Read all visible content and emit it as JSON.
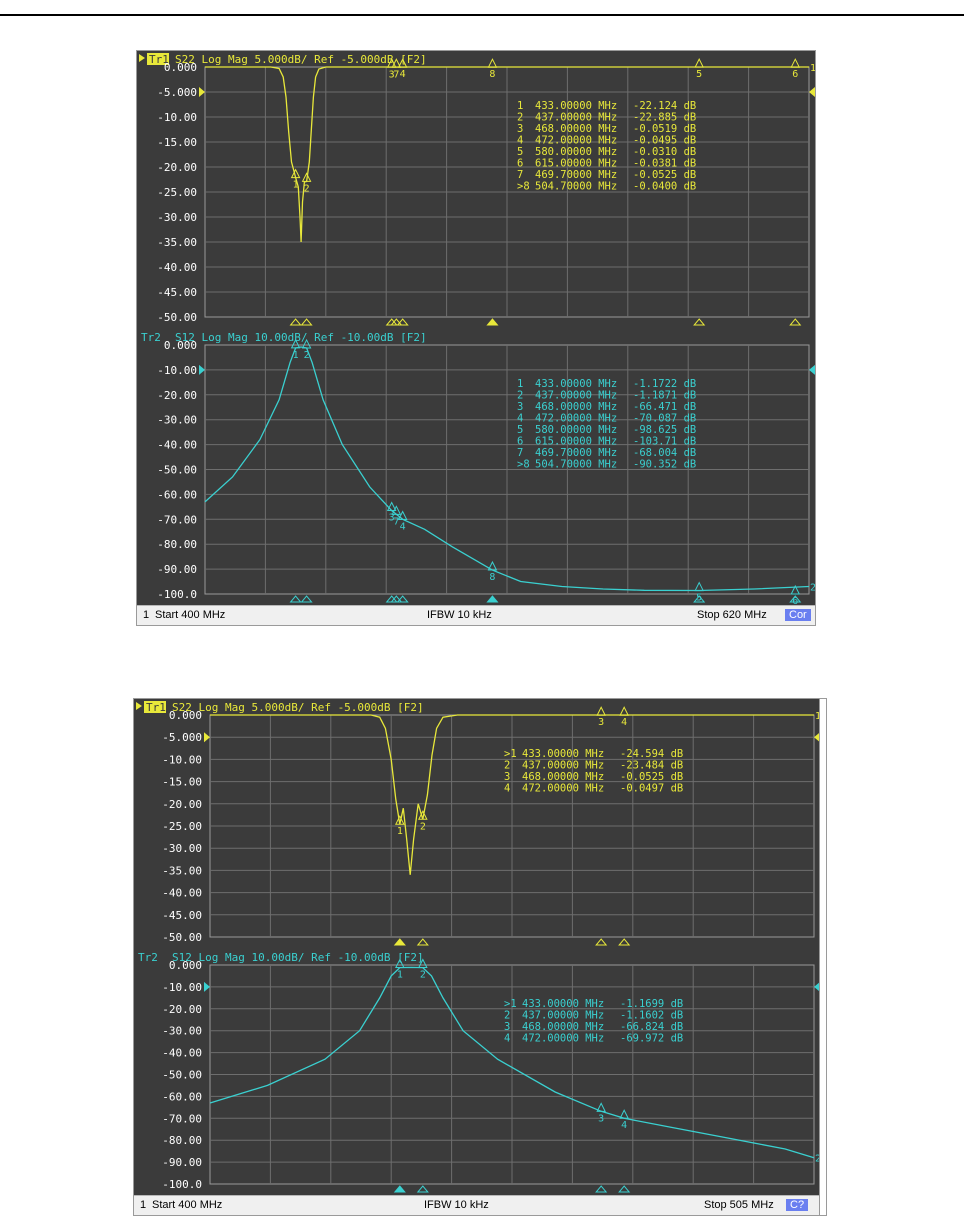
{
  "screenshots": [
    {
      "name": "screenshot-1",
      "status": {
        "channel": "1",
        "start": "Start 400 MHz",
        "ifbw": "IFBW 10 kHz",
        "stop": "Stop 620 MHz",
        "cor": "Cor"
      },
      "chart_data": [
        {
          "type": "line",
          "trace": "Tr1",
          "header": "S22 Log Mag 5.000dB/ Ref -5.000dB [F2]",
          "color": "#e8e83a",
          "x_range_mhz": [
            400,
            620
          ],
          "ylim": [
            -50,
            0
          ],
          "y_ticks": [
            "0.000",
            "-5.000",
            "-10.00",
            "-15.00",
            "-20.00",
            "-25.00",
            "-30.00",
            "-35.00",
            "-40.00",
            "-45.00",
            "-50.00"
          ],
          "ref_value": -5,
          "grid": true,
          "channel_label": "1",
          "markers": [
            {
              "id": "1",
              "freq": "433.00000 MHz",
              "value": "-22.124 dB",
              "x": 433,
              "y": -22.124
            },
            {
              "id": "2",
              "freq": "437.00000 MHz",
              "value": "-22.885 dB",
              "x": 437,
              "y": -22.885
            },
            {
              "id": "3",
              "freq": "468.00000 MHz",
              "value": "-0.0519 dB",
              "x": 468,
              "y": -0.0519
            },
            {
              "id": "4",
              "freq": "472.00000 MHz",
              "value": "-0.0495 dB",
              "x": 472,
              "y": -0.0495
            },
            {
              "id": "5",
              "freq": "580.00000 MHz",
              "value": "-0.0310 dB",
              "x": 580,
              "y": -0.031
            },
            {
              "id": "6",
              "freq": "615.00000 MHz",
              "value": "-0.0381 dB",
              "x": 615,
              "y": -0.0381
            },
            {
              "id": "7",
              "freq": "469.70000 MHz",
              "value": "-0.0525 dB",
              "x": 469.7,
              "y": -0.0525
            },
            {
              "id": ">8",
              "freq": "504.70000 MHz",
              "value": "-0.0400 dB",
              "x": 504.7,
              "y": -0.04
            }
          ],
          "trace_points": [
            [
              400,
              0
            ],
            [
              424,
              0
            ],
            [
              427,
              -0.3
            ],
            [
              428.5,
              -2
            ],
            [
              429.5,
              -6
            ],
            [
              430.5,
              -13
            ],
            [
              431.5,
              -19
            ],
            [
              432.5,
              -21
            ],
            [
              433,
              -22.1
            ],
            [
              434,
              -24
            ],
            [
              434.6,
              -30
            ],
            [
              435,
              -35
            ],
            [
              435.5,
              -27
            ],
            [
              436.2,
              -23
            ],
            [
              437,
              -22.9
            ],
            [
              438,
              -19
            ],
            [
              438.8,
              -12
            ],
            [
              439.5,
              -6
            ],
            [
              440.3,
              -2
            ],
            [
              441.5,
              -0.4
            ],
            [
              444,
              0
            ],
            [
              620,
              0
            ]
          ]
        },
        {
          "type": "line",
          "trace": "Tr2",
          "header": "S12 Log Mag 10.00dB/ Ref -10.00dB [F2]",
          "color": "#3ad0d0",
          "x_range_mhz": [
            400,
            620
          ],
          "ylim": [
            -100,
            0
          ],
          "y_ticks": [
            "0.000",
            "-10.00",
            "-20.00",
            "-30.00",
            "-40.00",
            "-50.00",
            "-60.00",
            "-70.00",
            "-80.00",
            "-90.00",
            "-100.0"
          ],
          "ref_value": -10,
          "grid": true,
          "channel_label": "2",
          "markers": [
            {
              "id": "1",
              "freq": "433.00000 MHz",
              "value": "-1.1722 dB",
              "x": 433,
              "y": -1.1722
            },
            {
              "id": "2",
              "freq": "437.00000 MHz",
              "value": "-1.1871 dB",
              "x": 437,
              "y": -1.1871
            },
            {
              "id": "3",
              "freq": "468.00000 MHz",
              "value": "-66.471 dB",
              "x": 468,
              "y": -66.471
            },
            {
              "id": "4",
              "freq": "472.00000 MHz",
              "value": "-70.087 dB",
              "x": 472,
              "y": -70.087
            },
            {
              "id": "5",
              "freq": "580.00000 MHz",
              "value": "-98.625 dB",
              "x": 580,
              "y": -98.625
            },
            {
              "id": "6",
              "freq": "615.00000 MHz",
              "value": "-103.71 dB",
              "x": 615,
              "y": -103.71
            },
            {
              "id": "7",
              "freq": "469.70000 MHz",
              "value": "-68.004 dB",
              "x": 469.7,
              "y": -68.004
            },
            {
              "id": ">8",
              "freq": "504.70000 MHz",
              "value": "-90.352 dB",
              "x": 504.7,
              "y": -90.352
            }
          ],
          "trace_points": [
            [
              400,
              -63
            ],
            [
              410,
              -53
            ],
            [
              420,
              -38
            ],
            [
              427,
              -22
            ],
            [
              431,
              -7
            ],
            [
              433,
              -1.2
            ],
            [
              435,
              -0.8
            ],
            [
              437,
              -1.2
            ],
            [
              439,
              -7
            ],
            [
              443,
              -22
            ],
            [
              450,
              -40
            ],
            [
              460,
              -57
            ],
            [
              468,
              -66.5
            ],
            [
              472,
              -70
            ],
            [
              480,
              -74
            ],
            [
              490,
              -81
            ],
            [
              504.7,
              -90.4
            ],
            [
              515,
              -95
            ],
            [
              530,
              -97
            ],
            [
              545,
              -98
            ],
            [
              560,
              -98.5
            ],
            [
              580,
              -98.6
            ],
            [
              600,
              -98
            ],
            [
              620,
              -97
            ]
          ]
        }
      ]
    },
    {
      "name": "screenshot-2",
      "status": {
        "channel": "1",
        "start": "Start 400 MHz",
        "ifbw": "IFBW 10 kHz",
        "stop": "Stop 505 MHz",
        "cor": "C?"
      },
      "chart_data": [
        {
          "type": "line",
          "trace": "Tr1",
          "header": "S22 Log Mag 5.000dB/ Ref -5.000dB [F2]",
          "color": "#e8e83a",
          "x_range_mhz": [
            400,
            505
          ],
          "ylim": [
            -50,
            0
          ],
          "y_ticks": [
            "0.000",
            "-5.000",
            "-10.00",
            "-15.00",
            "-20.00",
            "-25.00",
            "-30.00",
            "-35.00",
            "-40.00",
            "-45.00",
            "-50.00"
          ],
          "ref_value": -5,
          "grid": true,
          "channel_label": "1",
          "markers": [
            {
              "id": ">1",
              "freq": "433.00000 MHz",
              "value": "-24.594 dB",
              "x": 433,
              "y": -24.594
            },
            {
              "id": "2",
              "freq": "437.00000 MHz",
              "value": "-23.484 dB",
              "x": 437,
              "y": -23.484
            },
            {
              "id": "3",
              "freq": "468.00000 MHz",
              "value": "-0.0525 dB",
              "x": 468,
              "y": -0.0525
            },
            {
              "id": "4",
              "freq": "472.00000 MHz",
              "value": "-0.0497 dB",
              "x": 472,
              "y": -0.0497
            }
          ],
          "trace_points": [
            [
              400,
              0
            ],
            [
              428,
              0
            ],
            [
              429.5,
              -0.5
            ],
            [
              430.5,
              -3
            ],
            [
              431.5,
              -10
            ],
            [
              432.3,
              -19
            ],
            [
              433,
              -24.6
            ],
            [
              433.6,
              -21
            ],
            [
              434.2,
              -28
            ],
            [
              434.8,
              -36
            ],
            [
              435.4,
              -28
            ],
            [
              436.2,
              -20
            ],
            [
              437,
              -23.5
            ],
            [
              437.8,
              -18
            ],
            [
              438.6,
              -9
            ],
            [
              439.4,
              -3
            ],
            [
              440.5,
              -0.5
            ],
            [
              443,
              0
            ],
            [
              505,
              0
            ]
          ]
        },
        {
          "type": "line",
          "trace": "Tr2",
          "header": "S12 Log Mag 10.00dB/ Ref -10.00dB [F2]",
          "color": "#3ad0d0",
          "x_range_mhz": [
            400,
            505
          ],
          "ylim": [
            -100,
            0
          ],
          "y_ticks": [
            "0.000",
            "-10.00",
            "-20.00",
            "-30.00",
            "-40.00",
            "-50.00",
            "-60.00",
            "-70.00",
            "-80.00",
            "-90.00",
            "-100.0"
          ],
          "ref_value": -10,
          "grid": true,
          "channel_label": "2",
          "markers": [
            {
              "id": ">1",
              "freq": "433.00000 MHz",
              "value": "-1.1699 dB",
              "x": 433,
              "y": -1.1699
            },
            {
              "id": "2",
              "freq": "437.00000 MHz",
              "value": "-1.1602 dB",
              "x": 437,
              "y": -1.1602
            },
            {
              "id": "3",
              "freq": "468.00000 MHz",
              "value": "-66.824 dB",
              "x": 468,
              "y": -66.824
            },
            {
              "id": "4",
              "freq": "472.00000 MHz",
              "value": "-69.972 dB",
              "x": 472,
              "y": -69.972
            }
          ],
          "trace_points": [
            [
              400,
              -63
            ],
            [
              410,
              -55
            ],
            [
              420,
              -43
            ],
            [
              426,
              -30
            ],
            [
              429.5,
              -15
            ],
            [
              431.5,
              -5
            ],
            [
              433,
              -1.2
            ],
            [
              435,
              -1.1
            ],
            [
              437,
              -1.2
            ],
            [
              438.5,
              -5
            ],
            [
              440.5,
              -15
            ],
            [
              444,
              -30
            ],
            [
              450,
              -43
            ],
            [
              460,
              -58
            ],
            [
              468,
              -66.8
            ],
            [
              472,
              -70
            ],
            [
              480,
              -74
            ],
            [
              490,
              -79
            ],
            [
              500,
              -84
            ],
            [
              505,
              -88
            ]
          ]
        }
      ]
    }
  ]
}
